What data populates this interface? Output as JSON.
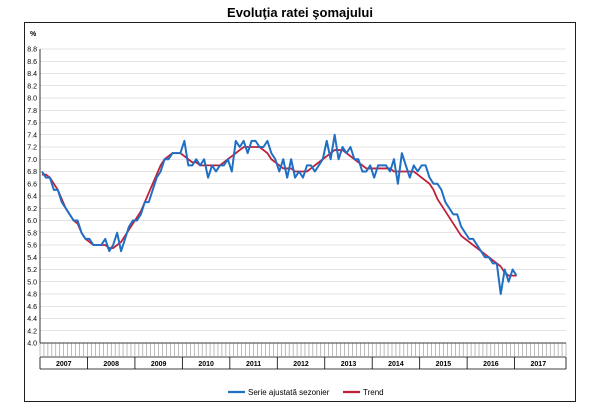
{
  "chart_data": {
    "type": "line",
    "title": "Evoluţia ratei şomajului",
    "ylabel": "%",
    "ylim": [
      4.0,
      8.8
    ],
    "yticks": [
      "4.0",
      "4.2",
      "4.4",
      "4.6",
      "4.8",
      "5.0",
      "5.2",
      "5.4",
      "5.6",
      "5.8",
      "6.0",
      "6.2",
      "6.4",
      "6.6",
      "6.8",
      "7.0",
      "7.2",
      "7.4",
      "7.6",
      "7.8",
      "8.0",
      "8.2",
      "8.4",
      "8.6",
      "8.8"
    ],
    "years": [
      "2007",
      "2008",
      "2009",
      "2010",
      "2011",
      "2012",
      "2013",
      "2014",
      "2015",
      "2016",
      "2017"
    ],
    "start": "2007-01",
    "legend_position": "bottom",
    "series": [
      {
        "name": "Serie ajustată sezonier",
        "color": "#1f6fc4",
        "values": [
          6.8,
          6.7,
          6.7,
          6.5,
          6.5,
          6.3,
          6.2,
          6.1,
          6.0,
          6.0,
          5.8,
          5.7,
          5.7,
          5.6,
          5.6,
          5.6,
          5.7,
          5.5,
          5.6,
          5.8,
          5.5,
          5.7,
          5.9,
          6.0,
          6.0,
          6.1,
          6.3,
          6.3,
          6.5,
          6.7,
          6.8,
          7.0,
          7.0,
          7.1,
          7.1,
          7.1,
          7.3,
          6.9,
          6.9,
          7.0,
          6.9,
          7.0,
          6.7,
          6.9,
          6.8,
          6.9,
          6.9,
          7.0,
          6.8,
          7.3,
          7.2,
          7.3,
          7.1,
          7.3,
          7.3,
          7.2,
          7.2,
          7.3,
          7.1,
          7.0,
          6.8,
          7.0,
          6.7,
          7.0,
          6.7,
          6.8,
          6.7,
          6.9,
          6.9,
          6.8,
          6.9,
          7.0,
          7.3,
          7.0,
          7.4,
          7.0,
          7.2,
          7.1,
          7.2,
          7.0,
          7.0,
          6.8,
          6.8,
          6.9,
          6.7,
          6.9,
          6.9,
          6.9,
          6.8,
          7.0,
          6.6,
          7.1,
          6.9,
          6.7,
          6.9,
          6.8,
          6.9,
          6.9,
          6.7,
          6.6,
          6.6,
          6.5,
          6.3,
          6.2,
          6.1,
          6.1,
          5.9,
          5.8,
          5.7,
          5.7,
          5.6,
          5.5,
          5.4,
          5.4,
          5.3,
          5.3,
          4.8,
          5.2,
          5.0,
          5.2,
          5.1
        ]
      },
      {
        "name": "Trend",
        "color": "#c0203a",
        "values": [
          6.75,
          6.75,
          6.7,
          6.6,
          6.5,
          6.35,
          6.2,
          6.1,
          6.0,
          5.95,
          5.8,
          5.7,
          5.65,
          5.6,
          5.6,
          5.6,
          5.6,
          5.55,
          5.55,
          5.6,
          5.65,
          5.75,
          5.85,
          5.95,
          6.05,
          6.15,
          6.3,
          6.45,
          6.6,
          6.75,
          6.9,
          7.0,
          7.05,
          7.1,
          7.1,
          7.1,
          7.05,
          7.0,
          6.95,
          6.95,
          6.9,
          6.9,
          6.9,
          6.9,
          6.9,
          6.9,
          6.95,
          7.0,
          7.05,
          7.1,
          7.15,
          7.2,
          7.2,
          7.2,
          7.2,
          7.2,
          7.15,
          7.1,
          7.0,
          6.95,
          6.9,
          6.85,
          6.85,
          6.85,
          6.8,
          6.8,
          6.8,
          6.8,
          6.85,
          6.9,
          6.95,
          7.0,
          7.05,
          7.1,
          7.15,
          7.15,
          7.15,
          7.1,
          7.05,
          7.0,
          6.95,
          6.9,
          6.85,
          6.85,
          6.85,
          6.85,
          6.85,
          6.85,
          6.85,
          6.8,
          6.8,
          6.8,
          6.8,
          6.8,
          6.8,
          6.75,
          6.7,
          6.65,
          6.6,
          6.5,
          6.35,
          6.25,
          6.15,
          6.05,
          5.95,
          5.85,
          5.75,
          5.7,
          5.65,
          5.6,
          5.55,
          5.5,
          5.45,
          5.4,
          5.35,
          5.3,
          5.25,
          5.15,
          5.1,
          5.1,
          5.1
        ]
      }
    ]
  }
}
